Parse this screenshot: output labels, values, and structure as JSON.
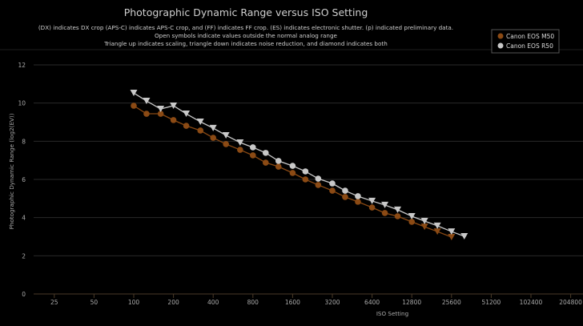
{
  "chart_data": {
    "type": "line",
    "title": "Photographic Dynamic Range versus ISO Setting",
    "subtitle": [
      "(DX) indicates DX crop (APS-C) indicates APS-C crop, and (FF) indicates FF crop. (ES) indicates electronic shutter. (p) indicated preliminary data.",
      "Open symbols indicate values outside the normal analog range",
      "Triangle up indicates scaling, triangle down indicates noise reduction, and diamond indicates both"
    ],
    "xlabel": "ISO Setting",
    "ylabel": "Photographic Dynamic Range (log2(EV))",
    "x_scale": "log2",
    "x_ticks": [
      25,
      50,
      100,
      200,
      400,
      800,
      1600,
      3200,
      6400,
      12800,
      25600,
      51200,
      102400,
      204800
    ],
    "y_ticks": [
      0,
      2,
      4,
      6,
      8,
      10,
      12
    ],
    "ylim": [
      0,
      12
    ],
    "grid": "horizontal",
    "legend_position": "top-right",
    "series": [
      {
        "name": "Canon EOS M50",
        "color": "#8b4a14",
        "x": [
          100,
          125,
          160,
          200,
          250,
          320,
          400,
          500,
          640,
          800,
          1000,
          1250,
          1600,
          2000,
          2500,
          3200,
          4000,
          5000,
          6400,
          8000,
          10000,
          12800,
          16000,
          20000,
          25600
        ],
        "y": [
          9.86,
          9.44,
          9.44,
          9.11,
          8.81,
          8.56,
          8.18,
          7.85,
          7.55,
          7.26,
          6.88,
          6.67,
          6.34,
          6.0,
          5.71,
          5.41,
          5.08,
          4.83,
          4.53,
          4.24,
          4.07,
          3.78,
          3.52,
          3.27,
          2.98
        ],
        "markers": [
          "circle",
          "circle",
          "circle",
          "circle",
          "circle",
          "circle",
          "circle",
          "circle",
          "circle",
          "circle",
          "circle",
          "circle",
          "circle",
          "circle",
          "circle",
          "circle",
          "circle",
          "circle",
          "circle",
          "circle",
          "circle",
          "circle",
          "triangle-down",
          "triangle-down",
          "triangle-down"
        ]
      },
      {
        "name": "Canon EOS R50",
        "color": "#c8c8c8",
        "x": [
          100,
          125,
          160,
          200,
          250,
          320,
          400,
          500,
          640,
          800,
          1000,
          1250,
          1600,
          2000,
          2500,
          3200,
          4000,
          5000,
          6400,
          8000,
          10000,
          12800,
          16000,
          20000,
          25600,
          32000
        ],
        "y": [
          10.53,
          10.11,
          9.69,
          9.86,
          9.44,
          9.02,
          8.69,
          8.31,
          7.93,
          7.68,
          7.39,
          6.97,
          6.71,
          6.42,
          6.04,
          5.79,
          5.41,
          5.12,
          4.87,
          4.66,
          4.41,
          4.07,
          3.82,
          3.57,
          3.27,
          3.02
        ],
        "markers": [
          "triangle-down",
          "triangle-down",
          "triangle-down",
          "triangle-down",
          "triangle-down",
          "triangle-down",
          "triangle-down",
          "triangle-down",
          "triangle-down",
          "circle",
          "circle",
          "circle",
          "circle",
          "circle",
          "circle",
          "circle",
          "circle",
          "circle",
          "triangle-down",
          "triangle-down",
          "triangle-down",
          "triangle-down",
          "triangle-down",
          "triangle-down",
          "triangle-down",
          "triangle-down"
        ]
      }
    ]
  }
}
